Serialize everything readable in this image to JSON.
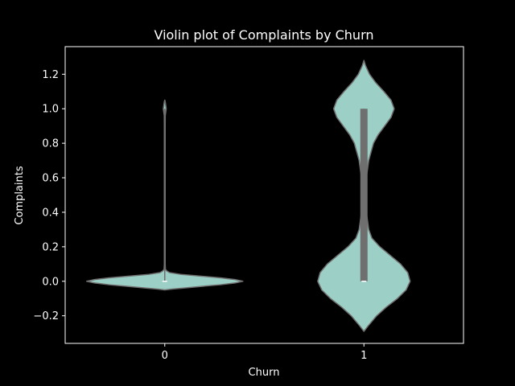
{
  "chart_data": {
    "type": "violin",
    "title": "Violin plot of Complaints by Churn",
    "xlabel": "Churn",
    "ylabel": "Complaints",
    "categories": [
      "0",
      "1"
    ],
    "ylim": [
      -0.36,
      1.36
    ],
    "yticks": [
      -0.2,
      0.0,
      0.2,
      0.4,
      0.6,
      0.8,
      1.0,
      1.2
    ],
    "ytick_labels": [
      "−0.2",
      "0.0",
      "0.2",
      "0.4",
      "0.6",
      "0.8",
      "1.0",
      "1.2"
    ],
    "grid": false,
    "violins": [
      {
        "category": "0",
        "median": 0.0,
        "q1": 0.0,
        "q3": 0.0,
        "whisker_low": 0.0,
        "whisker_high": 1.0,
        "density": [
          [
            -0.05,
            0.0
          ],
          [
            -0.045,
            0.1
          ],
          [
            -0.04,
            0.22
          ],
          [
            -0.03,
            0.45
          ],
          [
            -0.02,
            0.7
          ],
          [
            -0.01,
            0.88
          ],
          [
            0.0,
            0.98
          ],
          [
            0.01,
            0.88
          ],
          [
            0.02,
            0.7
          ],
          [
            0.03,
            0.45
          ],
          [
            0.04,
            0.2
          ],
          [
            0.05,
            0.06
          ],
          [
            0.06,
            0.025
          ],
          [
            0.07,
            0.008
          ],
          [
            0.1,
            0.005
          ],
          [
            0.3,
            0.005
          ],
          [
            0.5,
            0.005
          ],
          [
            0.7,
            0.005
          ],
          [
            0.9,
            0.005
          ],
          [
            0.96,
            0.006
          ],
          [
            0.98,
            0.012
          ],
          [
            1.0,
            0.018
          ],
          [
            1.02,
            0.012
          ],
          [
            1.04,
            0.006
          ],
          [
            1.05,
            0.0
          ]
        ]
      },
      {
        "category": "1",
        "median": 0.0,
        "q1": 0.0,
        "q3": 1.0,
        "whisker_low": 0.0,
        "whisker_high": 1.0,
        "density": [
          [
            -0.29,
            0.0
          ],
          [
            -0.26,
            0.05
          ],
          [
            -0.2,
            0.16
          ],
          [
            -0.15,
            0.28
          ],
          [
            -0.1,
            0.42
          ],
          [
            -0.05,
            0.53
          ],
          [
            0.0,
            0.58
          ],
          [
            0.05,
            0.55
          ],
          [
            0.1,
            0.46
          ],
          [
            0.15,
            0.33
          ],
          [
            0.2,
            0.2
          ],
          [
            0.25,
            0.1
          ],
          [
            0.3,
            0.06
          ],
          [
            0.4,
            0.03
          ],
          [
            0.5,
            0.025
          ],
          [
            0.6,
            0.03
          ],
          [
            0.7,
            0.06
          ],
          [
            0.8,
            0.12
          ],
          [
            0.85,
            0.18
          ],
          [
            0.9,
            0.26
          ],
          [
            0.95,
            0.34
          ],
          [
            1.0,
            0.38
          ],
          [
            1.05,
            0.34
          ],
          [
            1.1,
            0.25
          ],
          [
            1.15,
            0.15
          ],
          [
            1.2,
            0.07
          ],
          [
            1.25,
            0.02
          ],
          [
            1.28,
            0.0
          ]
        ]
      }
    ],
    "colors": {
      "background": "#000000",
      "violin_fill": "#9ccfc5",
      "violin_edge": "#6f6f6f",
      "box": "#6f6f6f",
      "median_marker": "#ffffff",
      "axis": "#ffffff"
    }
  }
}
